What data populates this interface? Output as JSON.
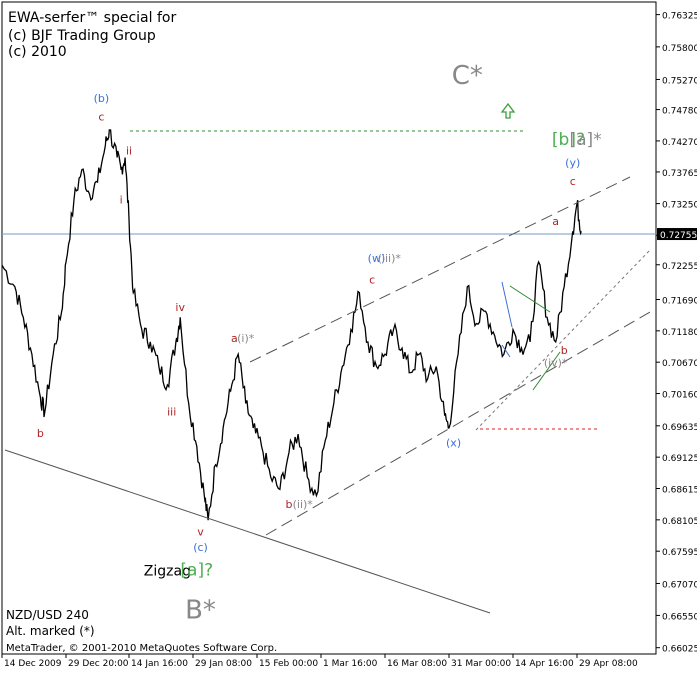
{
  "header": {
    "line1": "EWA-serfer™ special for",
    "line2": "(c) BJF Trading Group",
    "line3": "(c) 2010"
  },
  "footer": {
    "symbol": "NZD/USD 240",
    "alt_note": "Alt. marked (*)",
    "copyright": "MetaTrader, © 2001-2010 MetaQuotes Software Corp."
  },
  "chart_data": {
    "type": "line",
    "symbol": "NZD/USD",
    "timeframe": "240",
    "ylim": [
      0.6602,
      0.764
    ],
    "y_ticks": [
      "0.76325",
      "0.75800",
      "0.75270",
      "0.74780",
      "0.74270",
      "0.73765",
      "0.73250",
      "0.72735",
      "0.72255",
      "0.71690",
      "0.71180",
      "0.70670",
      "0.70160",
      "0.69635",
      "0.69125",
      "0.68615",
      "0.68105",
      "0.67595",
      "0.67070",
      "0.66550",
      "0.66025"
    ],
    "x_ticks": [
      "14 Dec 2009",
      "29 Dec 20:00",
      "14 Jan 16:00",
      "29 Jan 08:00",
      "15 Feb 00:00",
      "1 Mar 16:00",
      "16 Mar 08:00",
      "31 Mar 00:00",
      "14 Apr 16:00",
      "29 Apr 08:00"
    ],
    "current_price": "0.72755",
    "colors": {
      "axis": "#000000",
      "grid_bg": "#ffffff",
      "price": "#000000",
      "red_label": "#b22222",
      "blue_label": "#3a6fd8",
      "green": "#4caf50",
      "gray": "#888888"
    },
    "series": [
      {
        "values_points": [
          [
            "14 Dec 2009",
            0.7225
          ],
          [
            "17 Dec",
            0.719
          ],
          [
            "19 Dec",
            0.714
          ],
          [
            "21 Dec",
            0.708
          ],
          [
            "23 Dec",
            0.701
          ],
          [
            "24 Dec",
            0.6985
          ],
          [
            "26 Dec",
            0.708
          ],
          [
            "28 Dec",
            0.715
          ],
          [
            "29 Dec",
            0.723
          ],
          [
            "31 Dec",
            0.733
          ],
          [
            "2 Jan",
            0.738
          ],
          [
            "4 Jan",
            0.734
          ],
          [
            "6 Jan",
            0.736
          ],
          [
            "8 Jan",
            0.742
          ],
          [
            "9 Jan",
            0.7445
          ],
          [
            "11 Jan",
            0.74
          ],
          [
            "12 Jan",
            0.738
          ],
          [
            "13 Jan",
            0.74
          ],
          [
            "14 Jan",
            0.73
          ],
          [
            "15 Jan",
            0.718
          ],
          [
            "17 Jan",
            0.712
          ],
          [
            "19 Jan",
            0.71
          ],
          [
            "21 Jan",
            0.706
          ],
          [
            "23 Jan",
            0.703
          ],
          [
            "25 Jan",
            0.71
          ],
          [
            "26 Jan",
            0.714
          ],
          [
            "28 Jan",
            0.7
          ],
          [
            "30 Jan",
            0.693
          ],
          [
            "1 Feb",
            0.685
          ],
          [
            "2 Feb",
            0.681
          ],
          [
            "4 Feb",
            0.69
          ],
          [
            "6 Feb",
            0.696
          ],
          [
            "8 Feb",
            0.702
          ],
          [
            "10 Feb",
            0.708
          ],
          [
            "12 Feb",
            0.7
          ],
          [
            "14 Feb",
            0.696
          ],
          [
            "16 Feb",
            0.693
          ],
          [
            "18 Feb",
            0.688
          ],
          [
            "20 Feb",
            0.686
          ],
          [
            "22 Feb",
            0.692
          ],
          [
            "24 Feb",
            0.695
          ],
          [
            "26 Feb",
            0.688
          ],
          [
            "28 Feb",
            0.685
          ],
          [
            "2 Mar",
            0.694
          ],
          [
            "4 Mar",
            0.7
          ],
          [
            "6 Mar",
            0.706
          ],
          [
            "8 Mar",
            0.712
          ],
          [
            "10 Mar",
            0.718
          ],
          [
            "12 Mar",
            0.71
          ],
          [
            "14 Mar",
            0.706
          ],
          [
            "16 Mar",
            0.708
          ],
          [
            "18 Mar",
            0.712
          ],
          [
            "20 Mar",
            0.709
          ],
          [
            "22 Mar",
            0.705
          ],
          [
            "24 Mar",
            0.708
          ],
          [
            "26 Mar",
            0.704
          ],
          [
            "28 Mar",
            0.706
          ],
          [
            "30 Mar",
            0.698
          ],
          [
            "31 Mar",
            0.696
          ],
          [
            "2 Apr",
            0.708
          ],
          [
            "4 Apr",
            0.719
          ],
          [
            "6 Apr",
            0.713
          ],
          [
            "8 Apr",
            0.715
          ],
          [
            "10 Apr",
            0.711
          ],
          [
            "12 Apr",
            0.708
          ],
          [
            "14 Apr",
            0.712
          ],
          [
            "16 Apr",
            0.709
          ],
          [
            "18 Apr",
            0.71
          ],
          [
            "20 Apr",
            0.723
          ],
          [
            "22 Apr",
            0.714
          ],
          [
            "24 Apr",
            0.71
          ],
          [
            "26 Apr",
            0.719
          ],
          [
            "28 Apr",
            0.728
          ],
          [
            "29 Apr",
            0.7325
          ],
          [
            "30 Apr",
            0.728
          ]
        ]
      }
    ],
    "annotations": [
      {
        "text": "(b)",
        "color": "blue",
        "x": "7 Jan",
        "y": 0.749
      },
      {
        "text": "c",
        "color": "red",
        "x": "7 Jan",
        "y": 0.746
      },
      {
        "text": "ii",
        "color": "red",
        "x": "14 Jan",
        "y": 0.7405
      },
      {
        "text": "i",
        "color": "red",
        "x": "12 Jan",
        "y": 0.7325
      },
      {
        "text": "iv",
        "color": "red",
        "x": "26 Jan",
        "y": 0.715
      },
      {
        "text": "iii",
        "color": "red",
        "x": "24 Jan",
        "y": 0.698
      },
      {
        "text": "v",
        "color": "red",
        "x": "31 Jan",
        "y": 0.6785
      },
      {
        "text": "(c)",
        "color": "blue",
        "x": "31 Jan",
        "y": 0.676
      },
      {
        "text": "b",
        "color": "red",
        "x": "23 Dec",
        "y": 0.6945
      },
      {
        "text": "a",
        "color": "red",
        "x": "9 Feb",
        "y": 0.71
      },
      {
        "text": "(i)*",
        "color": "gray",
        "x": "12 Feb",
        "y": 0.71
      },
      {
        "text": "b",
        "color": "red",
        "x": "22 Feb",
        "y": 0.683
      },
      {
        "text": "(ii)*",
        "color": "gray",
        "x": "25 Feb",
        "y": 0.683
      },
      {
        "text": "(w)",
        "color": "blue",
        "x": "14 Mar",
        "y": 0.723
      },
      {
        "text": "(iii)*",
        "color": "gray",
        "x": "17 Mar",
        "y": 0.723
      },
      {
        "text": "c",
        "color": "red",
        "x": "13 Mar",
        "y": 0.7195
      },
      {
        "text": "(x)",
        "color": "blue",
        "x": "1 Apr",
        "y": 0.693
      },
      {
        "text": "a",
        "color": "red",
        "x": "24 Apr",
        "y": 0.729
      },
      {
        "text": "b",
        "color": "red",
        "x": "26 Apr",
        "y": 0.708
      },
      {
        "text": "(iv)*",
        "color": "gray",
        "x": "24 Apr",
        "y": 0.706
      },
      {
        "text": "(y)",
        "color": "blue",
        "x": "28 Apr",
        "y": 0.7385
      },
      {
        "text": "c",
        "color": "red",
        "x": "28 Apr",
        "y": 0.7355
      },
      {
        "text": "[b]?",
        "color": "green",
        "x": "27 Apr",
        "y": 0.742
      },
      {
        "text": "[a]*",
        "color": "gray",
        "x": "1 May",
        "y": 0.742
      },
      {
        "text": "C*",
        "color": "gray",
        "x": "4 Apr",
        "y": 0.752
      },
      {
        "text": "B*",
        "color": "gray",
        "x": "31 Jan",
        "y": 0.665
      },
      {
        "text": "Zigzag",
        "color": "black",
        "x": "23 Jan",
        "y": 0.672
      },
      {
        "text": "[a]?",
        "color": "green",
        "x": "30 Jan",
        "y": 0.672
      }
    ]
  }
}
